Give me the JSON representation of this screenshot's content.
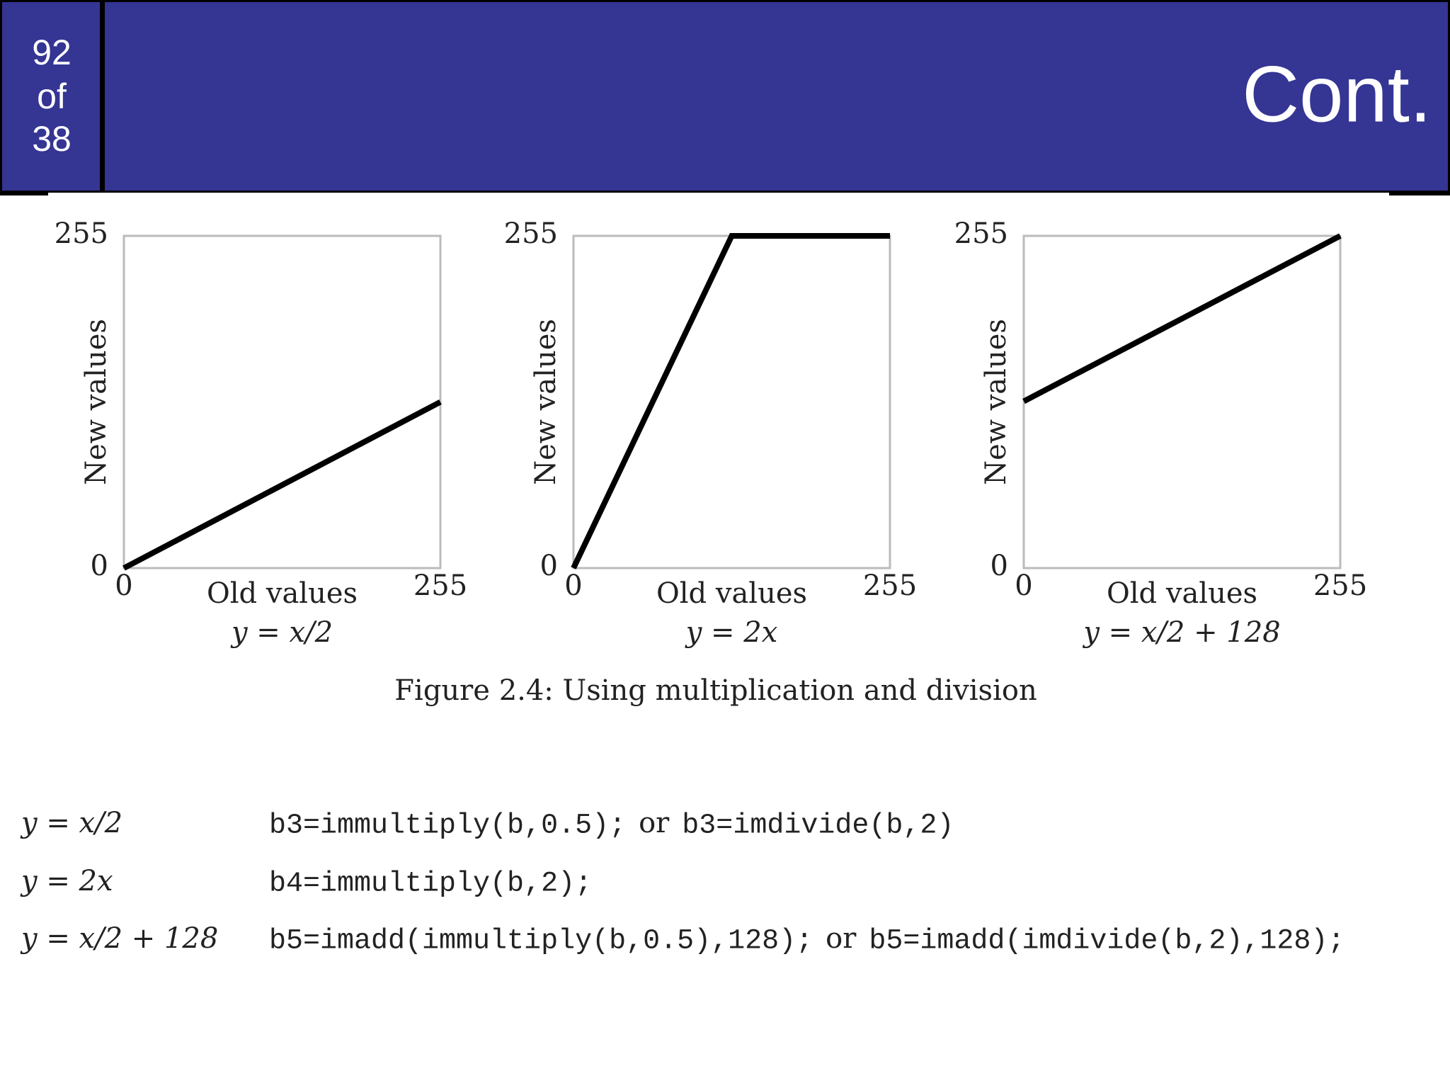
{
  "header": {
    "page": "92",
    "of": "of",
    "total": "38",
    "title": "Cont."
  },
  "chart_data": [
    {
      "type": "line",
      "xlabel": "Old values",
      "ylabel": "New values",
      "subtitle": "y = x/2",
      "x": [
        0,
        255
      ],
      "series": [
        {
          "color": "#000000",
          "values": [
            0,
            127.5
          ]
        }
      ],
      "xlim": [
        0,
        255
      ],
      "ylim": [
        0,
        255
      ],
      "xticks": [
        0,
        255
      ],
      "yticks": [
        0,
        255
      ]
    },
    {
      "type": "line",
      "xlabel": "Old values",
      "ylabel": "New values",
      "subtitle": "y = 2x",
      "x": [
        0,
        127.5,
        255
      ],
      "series": [
        {
          "color": "#000000",
          "values": [
            0,
            255,
            255
          ]
        }
      ],
      "xlim": [
        0,
        255
      ],
      "ylim": [
        0,
        255
      ],
      "xticks": [
        0,
        255
      ],
      "yticks": [
        0,
        255
      ]
    },
    {
      "type": "line",
      "xlabel": "Old values",
      "ylabel": "New values",
      "subtitle": "y = x/2 + 128",
      "x": [
        0,
        255
      ],
      "series": [
        {
          "color": "#000000",
          "values": [
            128,
            255
          ]
        }
      ],
      "xlim": [
        0,
        255
      ],
      "ylim": [
        0,
        255
      ],
      "xticks": [
        0,
        255
      ],
      "yticks": [
        0,
        255
      ]
    }
  ],
  "caption": "Figure 2.4: Using multiplication and division",
  "code": [
    {
      "equation": "y = x/2",
      "parts": [
        "b3=immultiply(b,0.5);",
        "or",
        "b3=imdivide(b,2)"
      ]
    },
    {
      "equation": "y = 2x",
      "parts": [
        "b4=immultiply(b,2);"
      ]
    },
    {
      "equation": "y = x/2 + 128",
      "parts": [
        "b5=imadd(immultiply(b,0.5),128);",
        "or",
        "b5=imadd(imdivide(b,2),128);"
      ]
    }
  ]
}
